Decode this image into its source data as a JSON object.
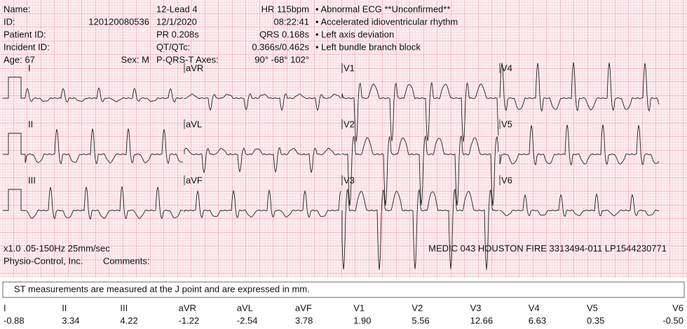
{
  "header": {
    "name_label": "Name:",
    "id_label": "ID:",
    "id_value": "120120080536",
    "patient_id_label": "Patient ID:",
    "incident_id_label": "Incident ID:",
    "age": "Age: 67",
    "sex": "Sex: M",
    "lead_set": "12-Lead 4",
    "date": "12/1/2020",
    "pr": "PR 0.208s",
    "qt_label": "QT/QTc:",
    "axes_label": "P-QRS-T Axes:",
    "hr": "HR 115bpm",
    "time": "08:22:41",
    "qrs": "QRS 0.168s",
    "qt_value": "0.366s/0.462s",
    "axes_value": "90° -68° 102°",
    "interpretation": [
      "• Abnormal ECG **Unconfirmed**",
      "• Accelerated idioventricular rhythm",
      "• Left axis deviation",
      "• Left bundle branch block"
    ]
  },
  "leads": [
    [
      "I",
      "aVR",
      "V1",
      "V4"
    ],
    [
      "II",
      "aVL",
      "V2",
      "V5"
    ],
    [
      "III",
      "aVF",
      "V3",
      "V6"
    ]
  ],
  "footer": {
    "settings": "x1.0 .05-150Hz 25mm/sec",
    "maker": "Physio-Control, Inc.",
    "comments": "Comments:",
    "device": "MEDIC 043 HOUSTON FIRE 3313494-011 LP1544230771"
  },
  "st": {
    "note": "ST measurements are measured at the J point and are expressed in mm.",
    "leads": [
      "I",
      "II",
      "III",
      "aVR",
      "aVL",
      "aVF",
      "V1",
      "V2",
      "V3",
      "V4",
      "V5",
      "V6"
    ],
    "values": [
      "-0.88",
      "3.34",
      "4.22",
      "-1.22",
      "-2.54",
      "3.78",
      "1.90",
      "5.56",
      "12.66",
      "6.63",
      "0.35",
      "-0.50"
    ]
  }
}
